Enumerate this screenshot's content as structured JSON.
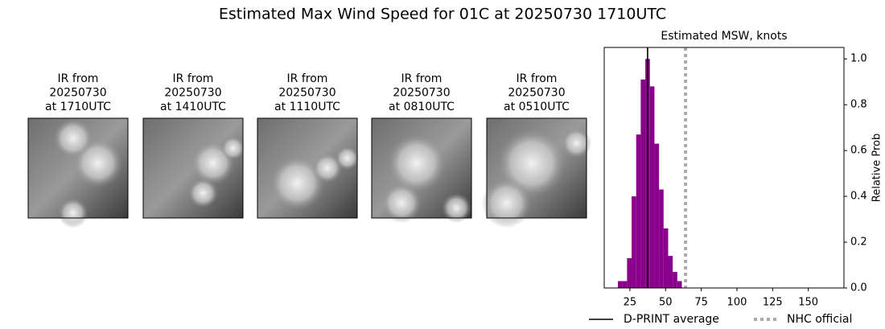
{
  "title": "Estimated Max Wind Speed for 01C at 20250730 1710UTC",
  "panels": [
    {
      "lines": [
        "IR from",
        "20250730",
        "at 1710UTC"
      ]
    },
    {
      "lines": [
        "IR from",
        "20250730",
        "at 1410UTC"
      ]
    },
    {
      "lines": [
        "IR from",
        "20250730",
        "at 1110UTC"
      ]
    },
    {
      "lines": [
        "IR from",
        "20250730",
        "at 0810UTC"
      ]
    },
    {
      "lines": [
        "IR from",
        "20250730",
        "at 0510UTC"
      ]
    }
  ],
  "chart_data": {
    "type": "histogram",
    "title": "Estimated MSW, knots",
    "ylabel": "Relative Prob",
    "bins": [
      16.6,
      19.8,
      23,
      26.2,
      29.4,
      32.6,
      35.8,
      39,
      42.2,
      45.4,
      48.6,
      51.8,
      55,
      58.2,
      61.4
    ],
    "values": [
      0.03,
      0.03,
      0.13,
      0.4,
      0.67,
      0.91,
      1.0,
      0.88,
      0.63,
      0.43,
      0.26,
      0.14,
      0.07,
      0.03
    ],
    "color": "#8b008b",
    "xlim": [
      7,
      175
    ],
    "ylim": [
      0,
      1.05
    ],
    "xticks": [
      25,
      50,
      75,
      100,
      125,
      150
    ],
    "yticks": [
      {
        "value": 0,
        "label": "0.0"
      },
      {
        "value": 0.2,
        "label": "0.2"
      },
      {
        "value": 0.4,
        "label": "0.4"
      },
      {
        "value": 0.6,
        "label": "0.6"
      },
      {
        "value": 0.8,
        "label": "0.8"
      },
      {
        "value": 1,
        "label": "1.0"
      }
    ],
    "yaxis_position": "right",
    "reference_lines": [
      {
        "name": "D-PRINT average",
        "value": 37.4,
        "color": "#000000",
        "style": "solid"
      },
      {
        "name": "NHC official",
        "value": 64,
        "color": "#aaaaaa",
        "style": "dotted"
      }
    ],
    "legend": "lower center"
  }
}
